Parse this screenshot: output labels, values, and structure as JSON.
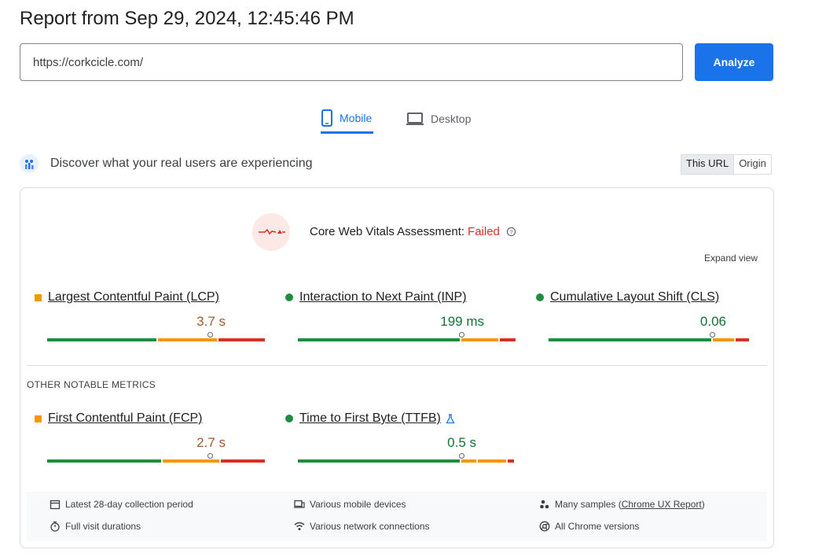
{
  "report": {
    "title": "Report from Sep 29, 2024, 12:45:46 PM"
  },
  "search": {
    "url_value": "https://corkcicle.com/",
    "analyze_label": "Analyze"
  },
  "tabs": [
    {
      "label": "Mobile",
      "icon": "smartphone-icon",
      "active": true
    },
    {
      "label": "Desktop",
      "icon": "laptop-icon",
      "active": false
    }
  ],
  "field_section": {
    "heading": "Discover what your real users are experiencing",
    "toggle": {
      "this_url": "This URL",
      "origin": "Origin",
      "selected": "This URL"
    }
  },
  "cwv": {
    "label": "Core Web Vitals Assessment:",
    "status": "Failed",
    "expand_label": "Expand view"
  },
  "core_metrics": [
    {
      "name": "Largest Contentful Paint (LCP)",
      "value": "3.7 s",
      "rating": "needs-improvement"
    },
    {
      "name": "Interaction to Next Paint (INP)",
      "value": "199 ms",
      "rating": "good"
    },
    {
      "name": "Cumulative Layout Shift (CLS)",
      "value": "0.06",
      "rating": "good"
    }
  ],
  "other_metrics_label": "OTHER NOTABLE METRICS",
  "other_metrics": [
    {
      "name": "First Contentful Paint (FCP)",
      "value": "2.7 s",
      "rating": "needs-improvement"
    },
    {
      "name": "Time to First Byte (TTFB)",
      "value": "0.5 s",
      "rating": "good",
      "experimental_icon": "flask-icon"
    }
  ],
  "info": {
    "period": "Latest 28-day collection period",
    "devices": "Various mobile devices",
    "samples_prefix": "Many samples (",
    "samples_link": "Chrome UX Report",
    "samples_suffix": ")",
    "durations": "Full visit durations",
    "network": "Various network connections",
    "versions": "All Chrome versions"
  },
  "colors": {
    "accent": "#1a73e8",
    "good": "#1e8e3e",
    "needs_improvement": "#f29900",
    "poor": "#d93025"
  }
}
